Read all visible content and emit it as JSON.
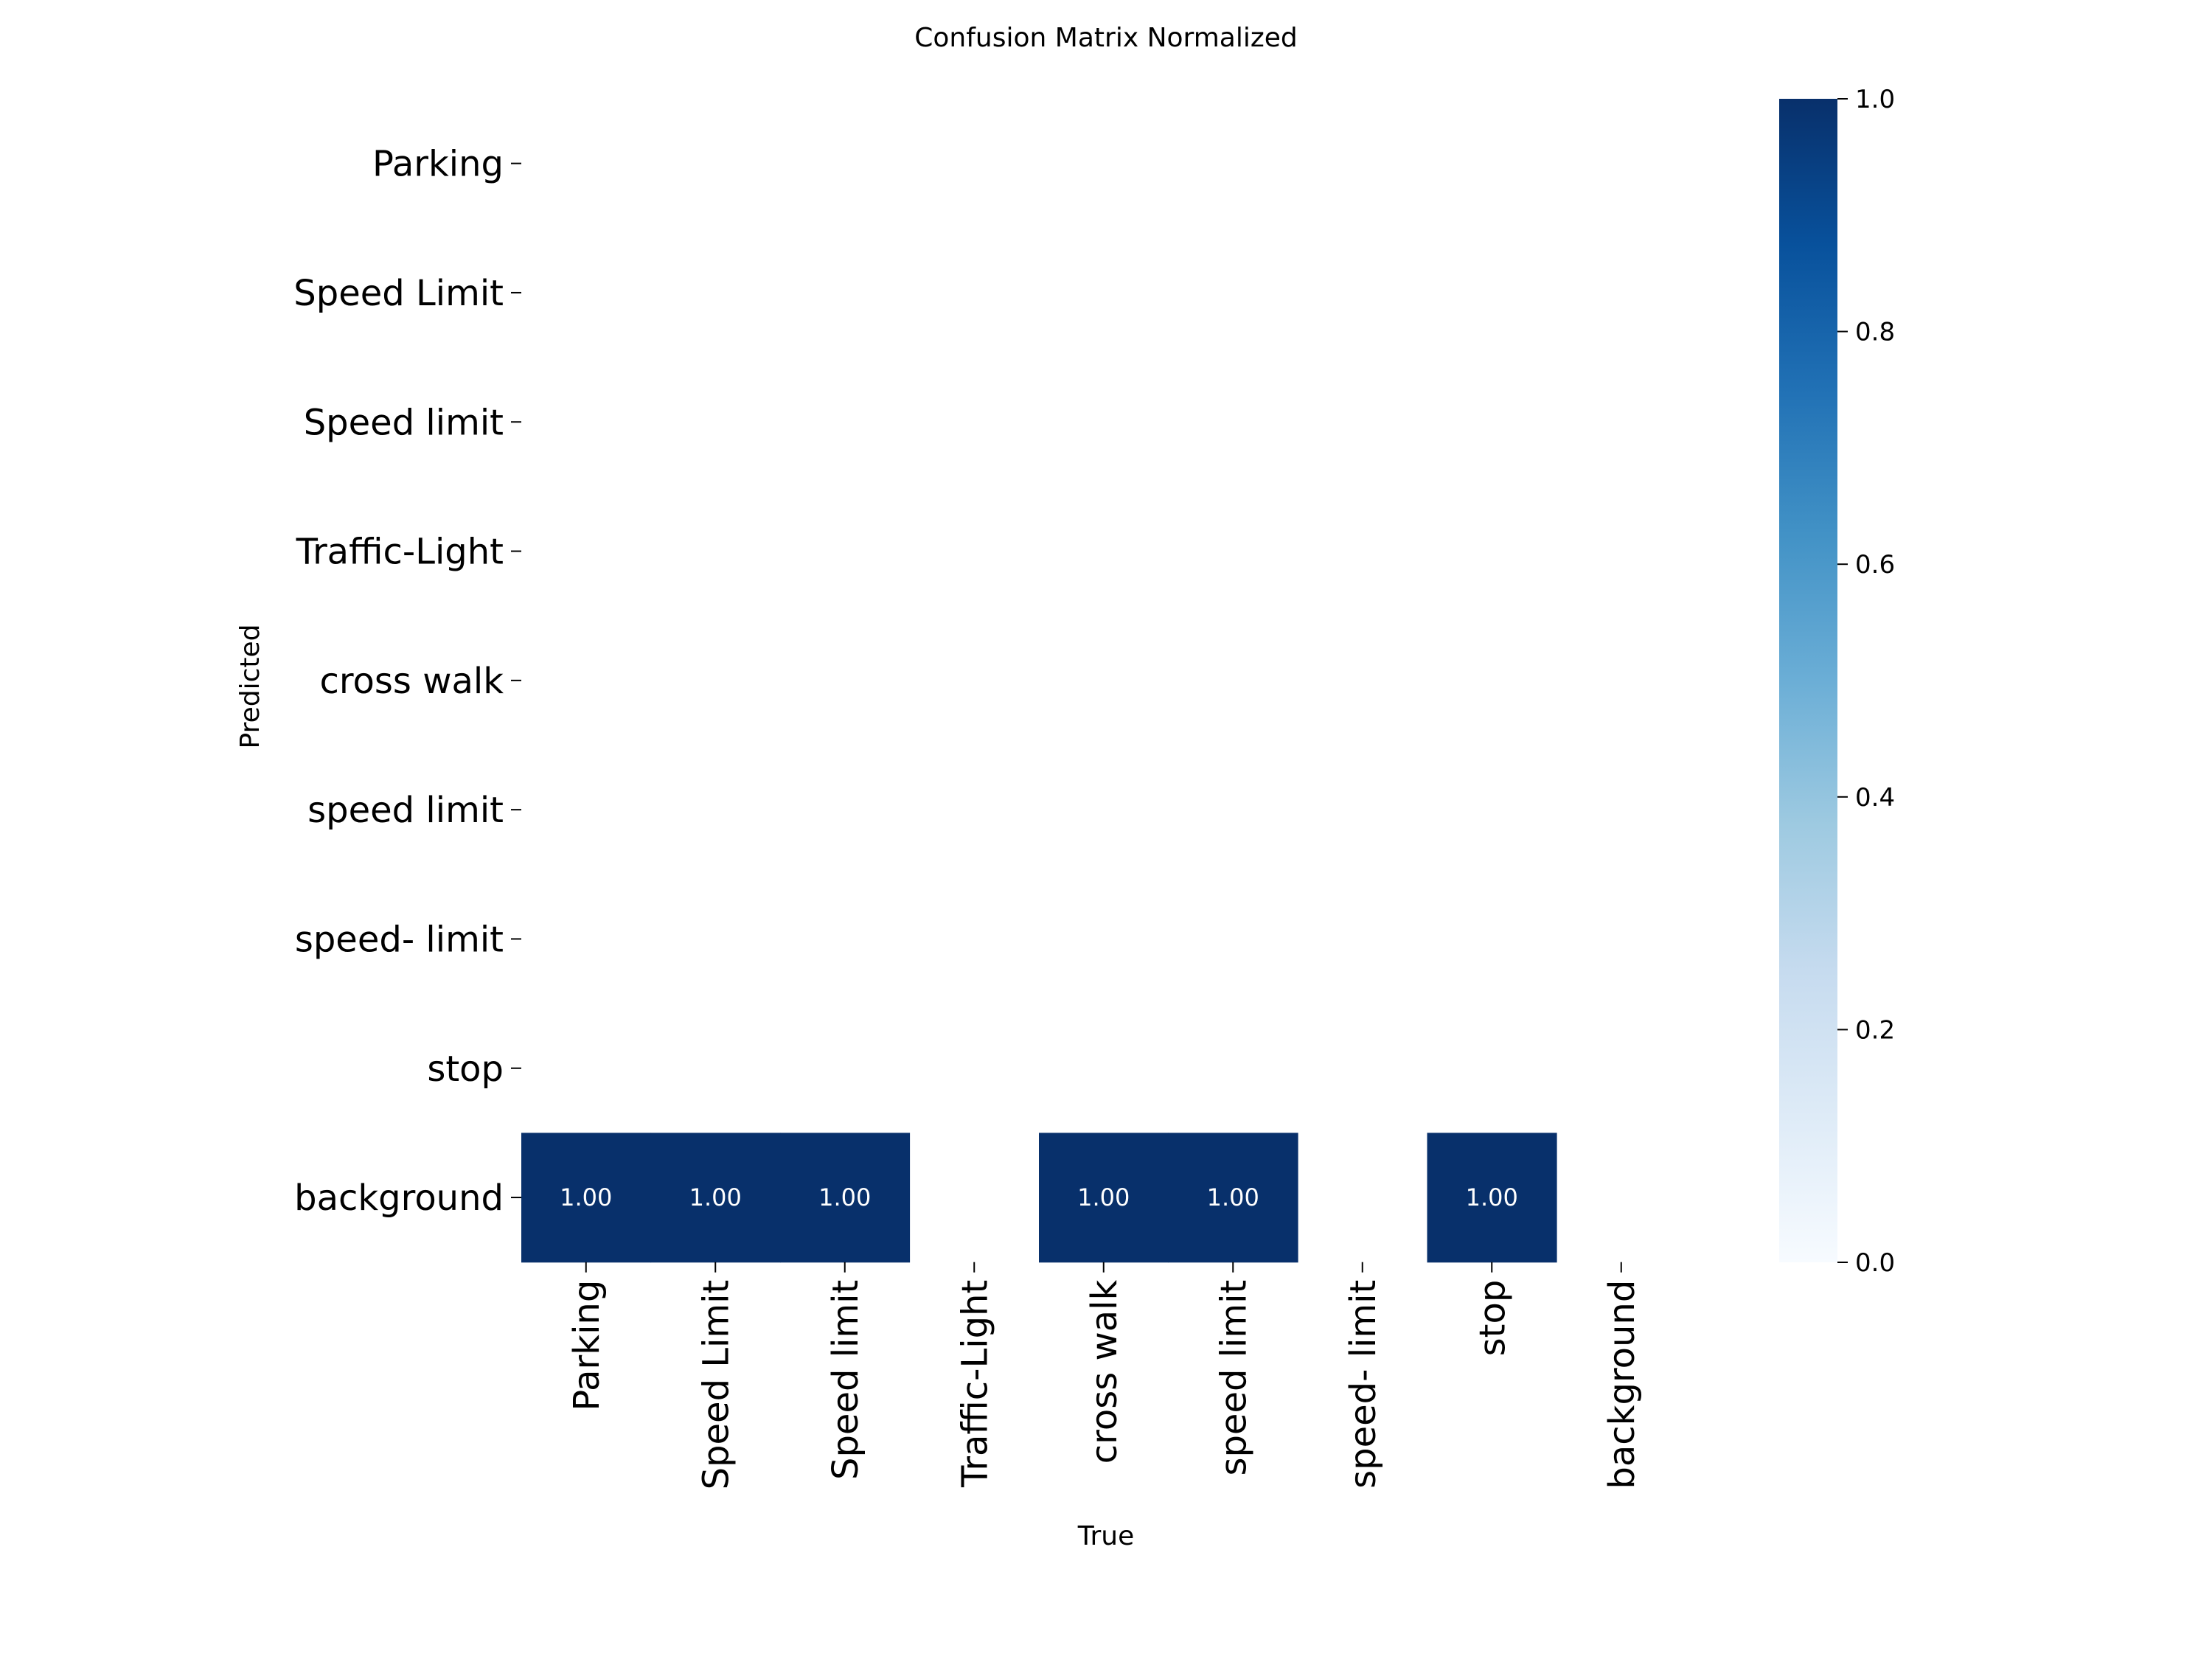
{
  "chart_data": {
    "type": "heatmap",
    "title": "Confusion Matrix Normalized",
    "xlabel": "True",
    "ylabel": "Predicted",
    "x_categories": [
      "Parking",
      "Speed Limit",
      "Speed limit",
      "Traffic-Light",
      "cross walk",
      "speed limit",
      "speed- limit",
      "stop",
      "background"
    ],
    "y_categories": [
      "Parking",
      "Speed Limit",
      "Speed limit",
      "Traffic-Light",
      "cross walk",
      "speed limit",
      "speed- limit",
      "stop",
      "background"
    ],
    "values": [
      [
        null,
        null,
        null,
        null,
        null,
        null,
        null,
        null,
        null
      ],
      [
        null,
        null,
        null,
        null,
        null,
        null,
        null,
        null,
        null
      ],
      [
        null,
        null,
        null,
        null,
        null,
        null,
        null,
        null,
        null
      ],
      [
        null,
        null,
        null,
        null,
        null,
        null,
        null,
        null,
        null
      ],
      [
        null,
        null,
        null,
        null,
        null,
        null,
        null,
        null,
        null
      ],
      [
        null,
        null,
        null,
        null,
        null,
        null,
        null,
        null,
        null
      ],
      [
        null,
        null,
        null,
        null,
        null,
        null,
        null,
        null,
        null
      ],
      [
        null,
        null,
        null,
        null,
        null,
        null,
        null,
        null,
        null
      ],
      [
        1.0,
        1.0,
        1.0,
        null,
        1.0,
        1.0,
        null,
        1.0,
        null
      ]
    ],
    "cell_labels": [
      [
        "",
        "",
        "",
        "",
        "",
        "",
        "",
        "",
        ""
      ],
      [
        "",
        "",
        "",
        "",
        "",
        "",
        "",
        "",
        ""
      ],
      [
        "",
        "",
        "",
        "",
        "",
        "",
        "",
        "",
        ""
      ],
      [
        "",
        "",
        "",
        "",
        "",
        "",
        "",
        "",
        ""
      ],
      [
        "",
        "",
        "",
        "",
        "",
        "",
        "",
        "",
        ""
      ],
      [
        "",
        "",
        "",
        "",
        "",
        "",
        "",
        "",
        ""
      ],
      [
        "",
        "",
        "",
        "",
        "",
        "",
        "",
        "",
        ""
      ],
      [
        "",
        "",
        "",
        "",
        "",
        "",
        "",
        "",
        ""
      ],
      [
        "1.00",
        "1.00",
        "1.00",
        "",
        "1.00",
        "1.00",
        "",
        "1.00",
        ""
      ]
    ],
    "colorbar": {
      "colormap": "Blues",
      "range": [
        0.0,
        1.0
      ],
      "ticks": [
        0.0,
        0.2,
        0.4,
        0.6,
        0.8,
        1.0
      ],
      "tick_labels": [
        "0.0",
        "0.2",
        "0.4",
        "0.6",
        "0.8",
        "1.0"
      ],
      "low_color": "#f7fbff",
      "high_color": "#08306b"
    },
    "grid": false
  }
}
